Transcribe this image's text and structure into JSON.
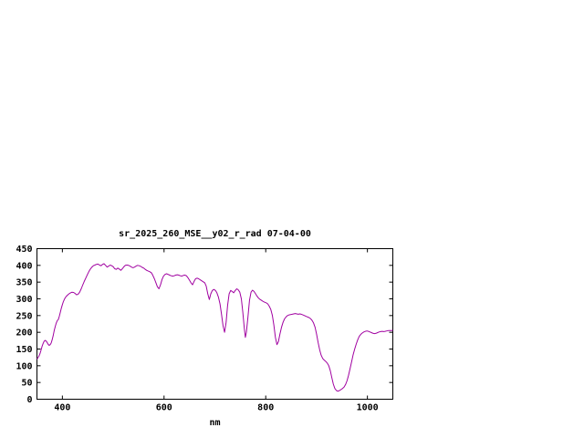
{
  "page": {
    "background": "#ffffff"
  },
  "chart_data": {
    "type": "line",
    "title": "sr_2025_260_MSE__y02_r_rad 07-04-00",
    "xlabel": "nm",
    "ylabel": "",
    "xlim": [
      350,
      1050
    ],
    "ylim": [
      0,
      450
    ],
    "xticks": [
      400,
      600,
      800,
      1000
    ],
    "yticks": [
      0,
      50,
      100,
      150,
      200,
      250,
      300,
      350,
      400,
      450
    ],
    "grid": false,
    "legend": "none",
    "line_color": "#a000a0",
    "border_color": "#000000",
    "series": [
      {
        "name": "sr_2025_260_MSE__y02_r_rad",
        "points": [
          [
            350,
            120
          ],
          [
            352,
            124
          ],
          [
            354,
            129
          ],
          [
            356,
            136
          ],
          [
            358,
            147
          ],
          [
            360,
            158
          ],
          [
            362,
            166
          ],
          [
            364,
            173
          ],
          [
            366,
            176
          ],
          [
            368,
            174
          ],
          [
            370,
            170
          ],
          [
            372,
            164
          ],
          [
            374,
            161
          ],
          [
            376,
            163
          ],
          [
            378,
            168
          ],
          [
            380,
            178
          ],
          [
            382,
            190
          ],
          [
            384,
            205
          ],
          [
            386,
            218
          ],
          [
            388,
            228
          ],
          [
            390,
            235
          ],
          [
            392,
            238
          ],
          [
            394,
            248
          ],
          [
            396,
            260
          ],
          [
            398,
            272
          ],
          [
            400,
            283
          ],
          [
            402,
            292
          ],
          [
            404,
            299
          ],
          [
            406,
            304
          ],
          [
            408,
            308
          ],
          [
            410,
            311
          ],
          [
            413,
            315
          ],
          [
            416,
            318
          ],
          [
            419,
            320
          ],
          [
            422,
            319
          ],
          [
            425,
            316
          ],
          [
            428,
            312
          ],
          [
            431,
            314
          ],
          [
            434,
            320
          ],
          [
            437,
            330
          ],
          [
            440,
            341
          ],
          [
            443,
            352
          ],
          [
            446,
            362
          ],
          [
            449,
            372
          ],
          [
            452,
            381
          ],
          [
            455,
            389
          ],
          [
            458,
            395
          ],
          [
            461,
            399
          ],
          [
            464,
            401
          ],
          [
            467,
            403
          ],
          [
            470,
            404
          ],
          [
            473,
            401
          ],
          [
            476,
            399
          ],
          [
            479,
            403
          ],
          [
            482,
            405
          ],
          [
            485,
            400
          ],
          [
            488,
            395
          ],
          [
            491,
            398
          ],
          [
            494,
            401
          ],
          [
            497,
            399
          ],
          [
            500,
            396
          ],
          [
            503,
            390
          ],
          [
            506,
            388
          ],
          [
            509,
            392
          ],
          [
            512,
            389
          ],
          [
            515,
            385
          ],
          [
            518,
            390
          ],
          [
            521,
            396
          ],
          [
            524,
            400
          ],
          [
            527,
            401
          ],
          [
            530,
            400
          ],
          [
            533,
            398
          ],
          [
            536,
            395
          ],
          [
            539,
            393
          ],
          [
            542,
            395
          ],
          [
            545,
            398
          ],
          [
            548,
            400
          ],
          [
            551,
            399
          ],
          [
            554,
            397
          ],
          [
            557,
            394
          ],
          [
            560,
            392
          ],
          [
            563,
            388
          ],
          [
            566,
            385
          ],
          [
            569,
            383
          ],
          [
            572,
            381
          ],
          [
            575,
            378
          ],
          [
            578,
            370
          ],
          [
            581,
            360
          ],
          [
            584,
            348
          ],
          [
            587,
            336
          ],
          [
            590,
            330
          ],
          [
            593,
            342
          ],
          [
            596,
            358
          ],
          [
            599,
            368
          ],
          [
            602,
            373
          ],
          [
            605,
            375
          ],
          [
            608,
            373
          ],
          [
            611,
            371
          ],
          [
            614,
            369
          ],
          [
            617,
            368
          ],
          [
            620,
            369
          ],
          [
            623,
            371
          ],
          [
            626,
            372
          ],
          [
            629,
            371
          ],
          [
            632,
            369
          ],
          [
            635,
            368
          ],
          [
            638,
            370
          ],
          [
            641,
            371
          ],
          [
            644,
            369
          ],
          [
            647,
            363
          ],
          [
            650,
            356
          ],
          [
            653,
            348
          ],
          [
            656,
            342
          ],
          [
            659,
            352
          ],
          [
            662,
            360
          ],
          [
            665,
            362
          ],
          [
            668,
            360
          ],
          [
            671,
            357
          ],
          [
            674,
            354
          ],
          [
            677,
            351
          ],
          [
            680,
            348
          ],
          [
            683,
            338
          ],
          [
            686,
            315
          ],
          [
            689,
            298
          ],
          [
            692,
            315
          ],
          [
            695,
            325
          ],
          [
            698,
            328
          ],
          [
            701,
            325
          ],
          [
            704,
            318
          ],
          [
            707,
            305
          ],
          [
            710,
            285
          ],
          [
            713,
            255
          ],
          [
            716,
            220
          ],
          [
            719,
            200
          ],
          [
            722,
            230
          ],
          [
            725,
            280
          ],
          [
            728,
            315
          ],
          [
            731,
            325
          ],
          [
            734,
            322
          ],
          [
            737,
            318
          ],
          [
            740,
            325
          ],
          [
            743,
            330
          ],
          [
            746,
            327
          ],
          [
            749,
            320
          ],
          [
            752,
            300
          ],
          [
            755,
            260
          ],
          [
            758,
            210
          ],
          [
            760,
            185
          ],
          [
            762,
            200
          ],
          [
            765,
            245
          ],
          [
            768,
            295
          ],
          [
            771,
            320
          ],
          [
            774,
            326
          ],
          [
            777,
            322
          ],
          [
            780,
            315
          ],
          [
            783,
            308
          ],
          [
            786,
            302
          ],
          [
            789,
            298
          ],
          [
            792,
            295
          ],
          [
            795,
            292
          ],
          [
            798,
            290
          ],
          [
            801,
            288
          ],
          [
            804,
            285
          ],
          [
            807,
            278
          ],
          [
            810,
            268
          ],
          [
            813,
            250
          ],
          [
            816,
            222
          ],
          [
            819,
            185
          ],
          [
            822,
            163
          ],
          [
            825,
            172
          ],
          [
            828,
            195
          ],
          [
            831,
            215
          ],
          [
            834,
            230
          ],
          [
            837,
            240
          ],
          [
            840,
            246
          ],
          [
            843,
            250
          ],
          [
            846,
            252
          ],
          [
            849,
            253
          ],
          [
            852,
            254
          ],
          [
            855,
            255
          ],
          [
            858,
            256
          ],
          [
            861,
            255
          ],
          [
            864,
            254
          ],
          [
            867,
            255
          ],
          [
            870,
            254
          ],
          [
            873,
            252
          ],
          [
            876,
            250
          ],
          [
            879,
            248
          ],
          [
            882,
            246
          ],
          [
            885,
            244
          ],
          [
            888,
            241
          ],
          [
            891,
            236
          ],
          [
            894,
            228
          ],
          [
            897,
            215
          ],
          [
            900,
            195
          ],
          [
            903,
            170
          ],
          [
            906,
            148
          ],
          [
            909,
            132
          ],
          [
            912,
            122
          ],
          [
            915,
            117
          ],
          [
            918,
            113
          ],
          [
            921,
            108
          ],
          [
            924,
            100
          ],
          [
            927,
            85
          ],
          [
            930,
            65
          ],
          [
            933,
            45
          ],
          [
            936,
            32
          ],
          [
            939,
            26
          ],
          [
            942,
            24
          ],
          [
            945,
            26
          ],
          [
            948,
            29
          ],
          [
            951,
            32
          ],
          [
            954,
            36
          ],
          [
            957,
            44
          ],
          [
            960,
            56
          ],
          [
            963,
            72
          ],
          [
            966,
            92
          ],
          [
            969,
            113
          ],
          [
            972,
            133
          ],
          [
            975,
            150
          ],
          [
            978,
            165
          ],
          [
            981,
            178
          ],
          [
            984,
            188
          ],
          [
            987,
            194
          ],
          [
            990,
            198
          ],
          [
            993,
            201
          ],
          [
            996,
            203
          ],
          [
            999,
            204
          ],
          [
            1002,
            203
          ],
          [
            1005,
            201
          ],
          [
            1008,
            199
          ],
          [
            1011,
            197
          ],
          [
            1014,
            196
          ],
          [
            1017,
            197
          ],
          [
            1020,
            199
          ],
          [
            1023,
            201
          ],
          [
            1026,
            202
          ],
          [
            1029,
            203
          ],
          [
            1032,
            202
          ],
          [
            1035,
            203
          ],
          [
            1038,
            204
          ],
          [
            1041,
            205
          ],
          [
            1044,
            205
          ],
          [
            1047,
            205
          ],
          [
            1050,
            206
          ]
        ]
      }
    ]
  }
}
